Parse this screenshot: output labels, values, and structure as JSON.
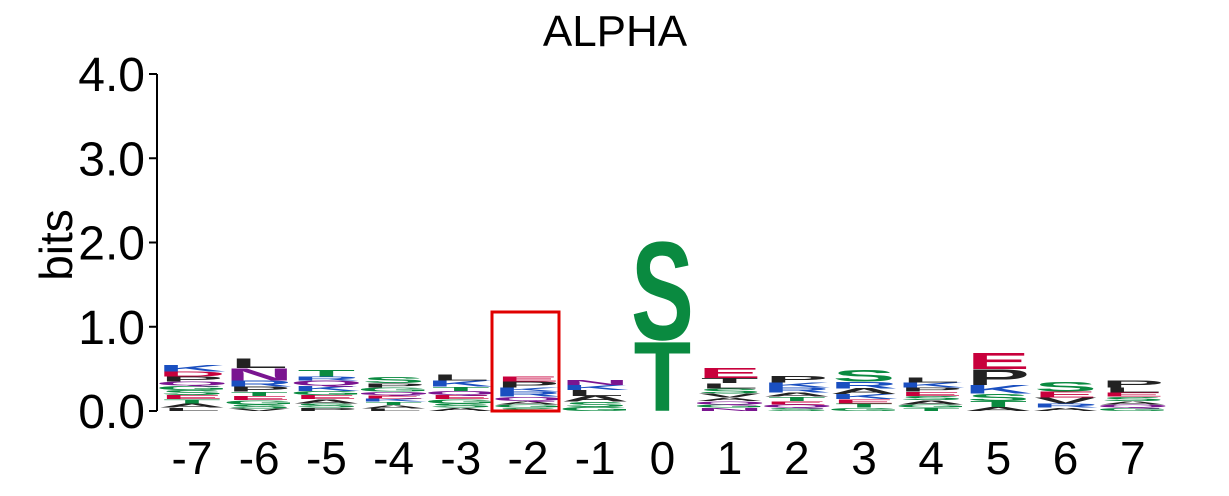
{
  "chart_data": {
    "type": "sequence-logo",
    "title": "ALPHA",
    "ylabel": "bits",
    "ylim": [
      0,
      4
    ],
    "yticks": [
      "0.0",
      "1.0",
      "2.0",
      "3.0",
      "4.0"
    ],
    "positions": [
      "-7",
      "-6",
      "-5",
      "-4",
      "-3",
      "-2",
      "-1",
      "0",
      "1",
      "2",
      "3",
      "4",
      "5",
      "6",
      "7"
    ],
    "highlight_position": "-2",
    "colors": {
      "hydrophobic": "#222222",
      "polar": "#0a8a40",
      "basic": "#1a4fc0",
      "acidic": "#c8003c",
      "amide": "#7a1590",
      "highlight": "#e00000"
    },
    "columns": [
      {
        "pos": "-7",
        "letters": [
          [
            "L",
            0.04,
            "hydrophobic"
          ],
          [
            "A",
            0.05,
            "hydrophobic"
          ],
          [
            "T",
            0.05,
            "polar"
          ],
          [
            "E",
            0.05,
            "acidic"
          ],
          [
            "S",
            0.06,
            "polar"
          ],
          [
            "G",
            0.05,
            "polar"
          ],
          [
            "Q",
            0.05,
            "amide"
          ],
          [
            "P",
            0.06,
            "hydrophobic"
          ],
          [
            "D",
            0.06,
            "acidic"
          ],
          [
            "K",
            0.08,
            "basic"
          ]
        ]
      },
      {
        "pos": "-6",
        "letters": [
          [
            "V",
            0.03,
            "hydrophobic"
          ],
          [
            "S",
            0.05,
            "polar"
          ],
          [
            "G",
            0.05,
            "polar"
          ],
          [
            "E",
            0.05,
            "acidic"
          ],
          [
            "T",
            0.05,
            "polar"
          ],
          [
            "P",
            0.06,
            "hydrophobic"
          ],
          [
            "R",
            0.07,
            "basic"
          ],
          [
            "N",
            0.15,
            "amide"
          ],
          [
            "L",
            0.12,
            "hydrophobic"
          ]
        ]
      },
      {
        "pos": "-5",
        "letters": [
          [
            "P",
            0.04,
            "hydrophobic"
          ],
          [
            "S",
            0.05,
            "polar"
          ],
          [
            "A",
            0.05,
            "hydrophobic"
          ],
          [
            "E",
            0.05,
            "acidic"
          ],
          [
            "G",
            0.05,
            "polar"
          ],
          [
            "K",
            0.06,
            "basic"
          ],
          [
            "Q",
            0.06,
            "amide"
          ],
          [
            "R",
            0.05,
            "basic"
          ],
          [
            "T",
            0.08,
            "polar"
          ]
        ]
      },
      {
        "pos": "-4",
        "letters": [
          [
            "L",
            0.03,
            "hydrophobic"
          ],
          [
            "A",
            0.04,
            "hydrophobic"
          ],
          [
            "T",
            0.04,
            "polar"
          ],
          [
            "K",
            0.04,
            "basic"
          ],
          [
            "E",
            0.04,
            "acidic"
          ],
          [
            "Q",
            0.04,
            "amide"
          ],
          [
            "G",
            0.05,
            "polar"
          ],
          [
            "P",
            0.05,
            "hydrophobic"
          ],
          [
            "S",
            0.07,
            "polar"
          ]
        ]
      },
      {
        "pos": "-3",
        "letters": [
          [
            "A",
            0.04,
            "hydrophobic"
          ],
          [
            "S",
            0.05,
            "polar"
          ],
          [
            "G",
            0.05,
            "polar"
          ],
          [
            "E",
            0.05,
            "acidic"
          ],
          [
            "Q",
            0.05,
            "amide"
          ],
          [
            "T",
            0.05,
            "polar"
          ],
          [
            "K",
            0.07,
            "basic"
          ],
          [
            "L",
            0.07,
            "hydrophobic"
          ]
        ]
      },
      {
        "pos": "-2",
        "letters": [
          [
            "S",
            0.04,
            "polar"
          ],
          [
            "G",
            0.04,
            "polar"
          ],
          [
            "A",
            0.04,
            "hydrophobic"
          ],
          [
            "Q",
            0.05,
            "amide"
          ],
          [
            "R",
            0.06,
            "basic"
          ],
          [
            "K",
            0.05,
            "basic"
          ],
          [
            "P",
            0.07,
            "hydrophobic"
          ],
          [
            "E",
            0.06,
            "acidic"
          ]
        ]
      },
      {
        "pos": "-1",
        "letters": [
          [
            "G",
            0.05,
            "polar"
          ],
          [
            "S",
            0.06,
            "polar"
          ],
          [
            "A",
            0.07,
            "hydrophobic"
          ],
          [
            "L",
            0.07,
            "hydrophobic"
          ],
          [
            "K",
            0.06,
            "basic"
          ],
          [
            "N",
            0.06,
            "amide"
          ]
        ]
      },
      {
        "pos": "0",
        "letters": [
          [
            "T",
            0.85,
            "polar"
          ],
          [
            "S",
            1.2,
            "polar"
          ]
        ]
      },
      {
        "pos": "1",
        "letters": [
          [
            "N",
            0.04,
            "amide"
          ],
          [
            "G",
            0.04,
            "polar"
          ],
          [
            "Q",
            0.04,
            "amide"
          ],
          [
            "A",
            0.04,
            "hydrophobic"
          ],
          [
            "V",
            0.05,
            "hydrophobic"
          ],
          [
            "S",
            0.06,
            "polar"
          ],
          [
            "L",
            0.06,
            "hydrophobic"
          ],
          [
            "T",
            0.06,
            "hydrophobic"
          ],
          [
            "E",
            0.13,
            "acidic"
          ]
        ]
      },
      {
        "pos": "2",
        "letters": [
          [
            "S",
            0.04,
            "polar"
          ],
          [
            "Q",
            0.04,
            "amide"
          ],
          [
            "E",
            0.04,
            "acidic"
          ],
          [
            "T",
            0.05,
            "polar"
          ],
          [
            "A",
            0.05,
            "hydrophobic"
          ],
          [
            "R",
            0.06,
            "basic"
          ],
          [
            "K",
            0.06,
            "basic"
          ],
          [
            "P",
            0.08,
            "hydrophobic"
          ]
        ]
      },
      {
        "pos": "3",
        "letters": [
          [
            "G",
            0.04,
            "polar"
          ],
          [
            "T",
            0.05,
            "polar"
          ],
          [
            "E",
            0.05,
            "acidic"
          ],
          [
            "K",
            0.06,
            "basic"
          ],
          [
            "A",
            0.07,
            "hydrophobic"
          ],
          [
            "R",
            0.08,
            "basic"
          ],
          [
            "S",
            0.14,
            "polar"
          ]
        ]
      },
      {
        "pos": "4",
        "letters": [
          [
            "T",
            0.04,
            "polar"
          ],
          [
            "G",
            0.04,
            "polar"
          ],
          [
            "A",
            0.05,
            "hydrophobic"
          ],
          [
            "S",
            0.05,
            "polar"
          ],
          [
            "E",
            0.05,
            "acidic"
          ],
          [
            "P",
            0.05,
            "hydrophobic"
          ],
          [
            "K",
            0.06,
            "basic"
          ],
          [
            "L",
            0.06,
            "hydrophobic"
          ]
        ]
      },
      {
        "pos": "5",
        "letters": [
          [
            "A",
            0.05,
            "hydrophobic"
          ],
          [
            "T",
            0.07,
            "polar"
          ],
          [
            "S",
            0.09,
            "polar"
          ],
          [
            "K",
            0.1,
            "basic"
          ],
          [
            "P",
            0.19,
            "hydrophobic"
          ],
          [
            "E",
            0.2,
            "acidic"
          ]
        ]
      },
      {
        "pos": "6",
        "letters": [
          [
            "A",
            0.04,
            "hydrophobic"
          ],
          [
            "R",
            0.05,
            "basic"
          ],
          [
            "V",
            0.07,
            "hydrophobic"
          ],
          [
            "E",
            0.07,
            "acidic"
          ],
          [
            "S",
            0.12,
            "polar"
          ]
        ]
      },
      {
        "pos": "7",
        "letters": [
          [
            "G",
            0.04,
            "polar"
          ],
          [
            "Q",
            0.04,
            "amide"
          ],
          [
            "A",
            0.04,
            "hydrophobic"
          ],
          [
            "S",
            0.05,
            "polar"
          ],
          [
            "E",
            0.05,
            "acidic"
          ],
          [
            "L",
            0.06,
            "hydrophobic"
          ],
          [
            "P",
            0.09,
            "hydrophobic"
          ]
        ]
      }
    ]
  }
}
